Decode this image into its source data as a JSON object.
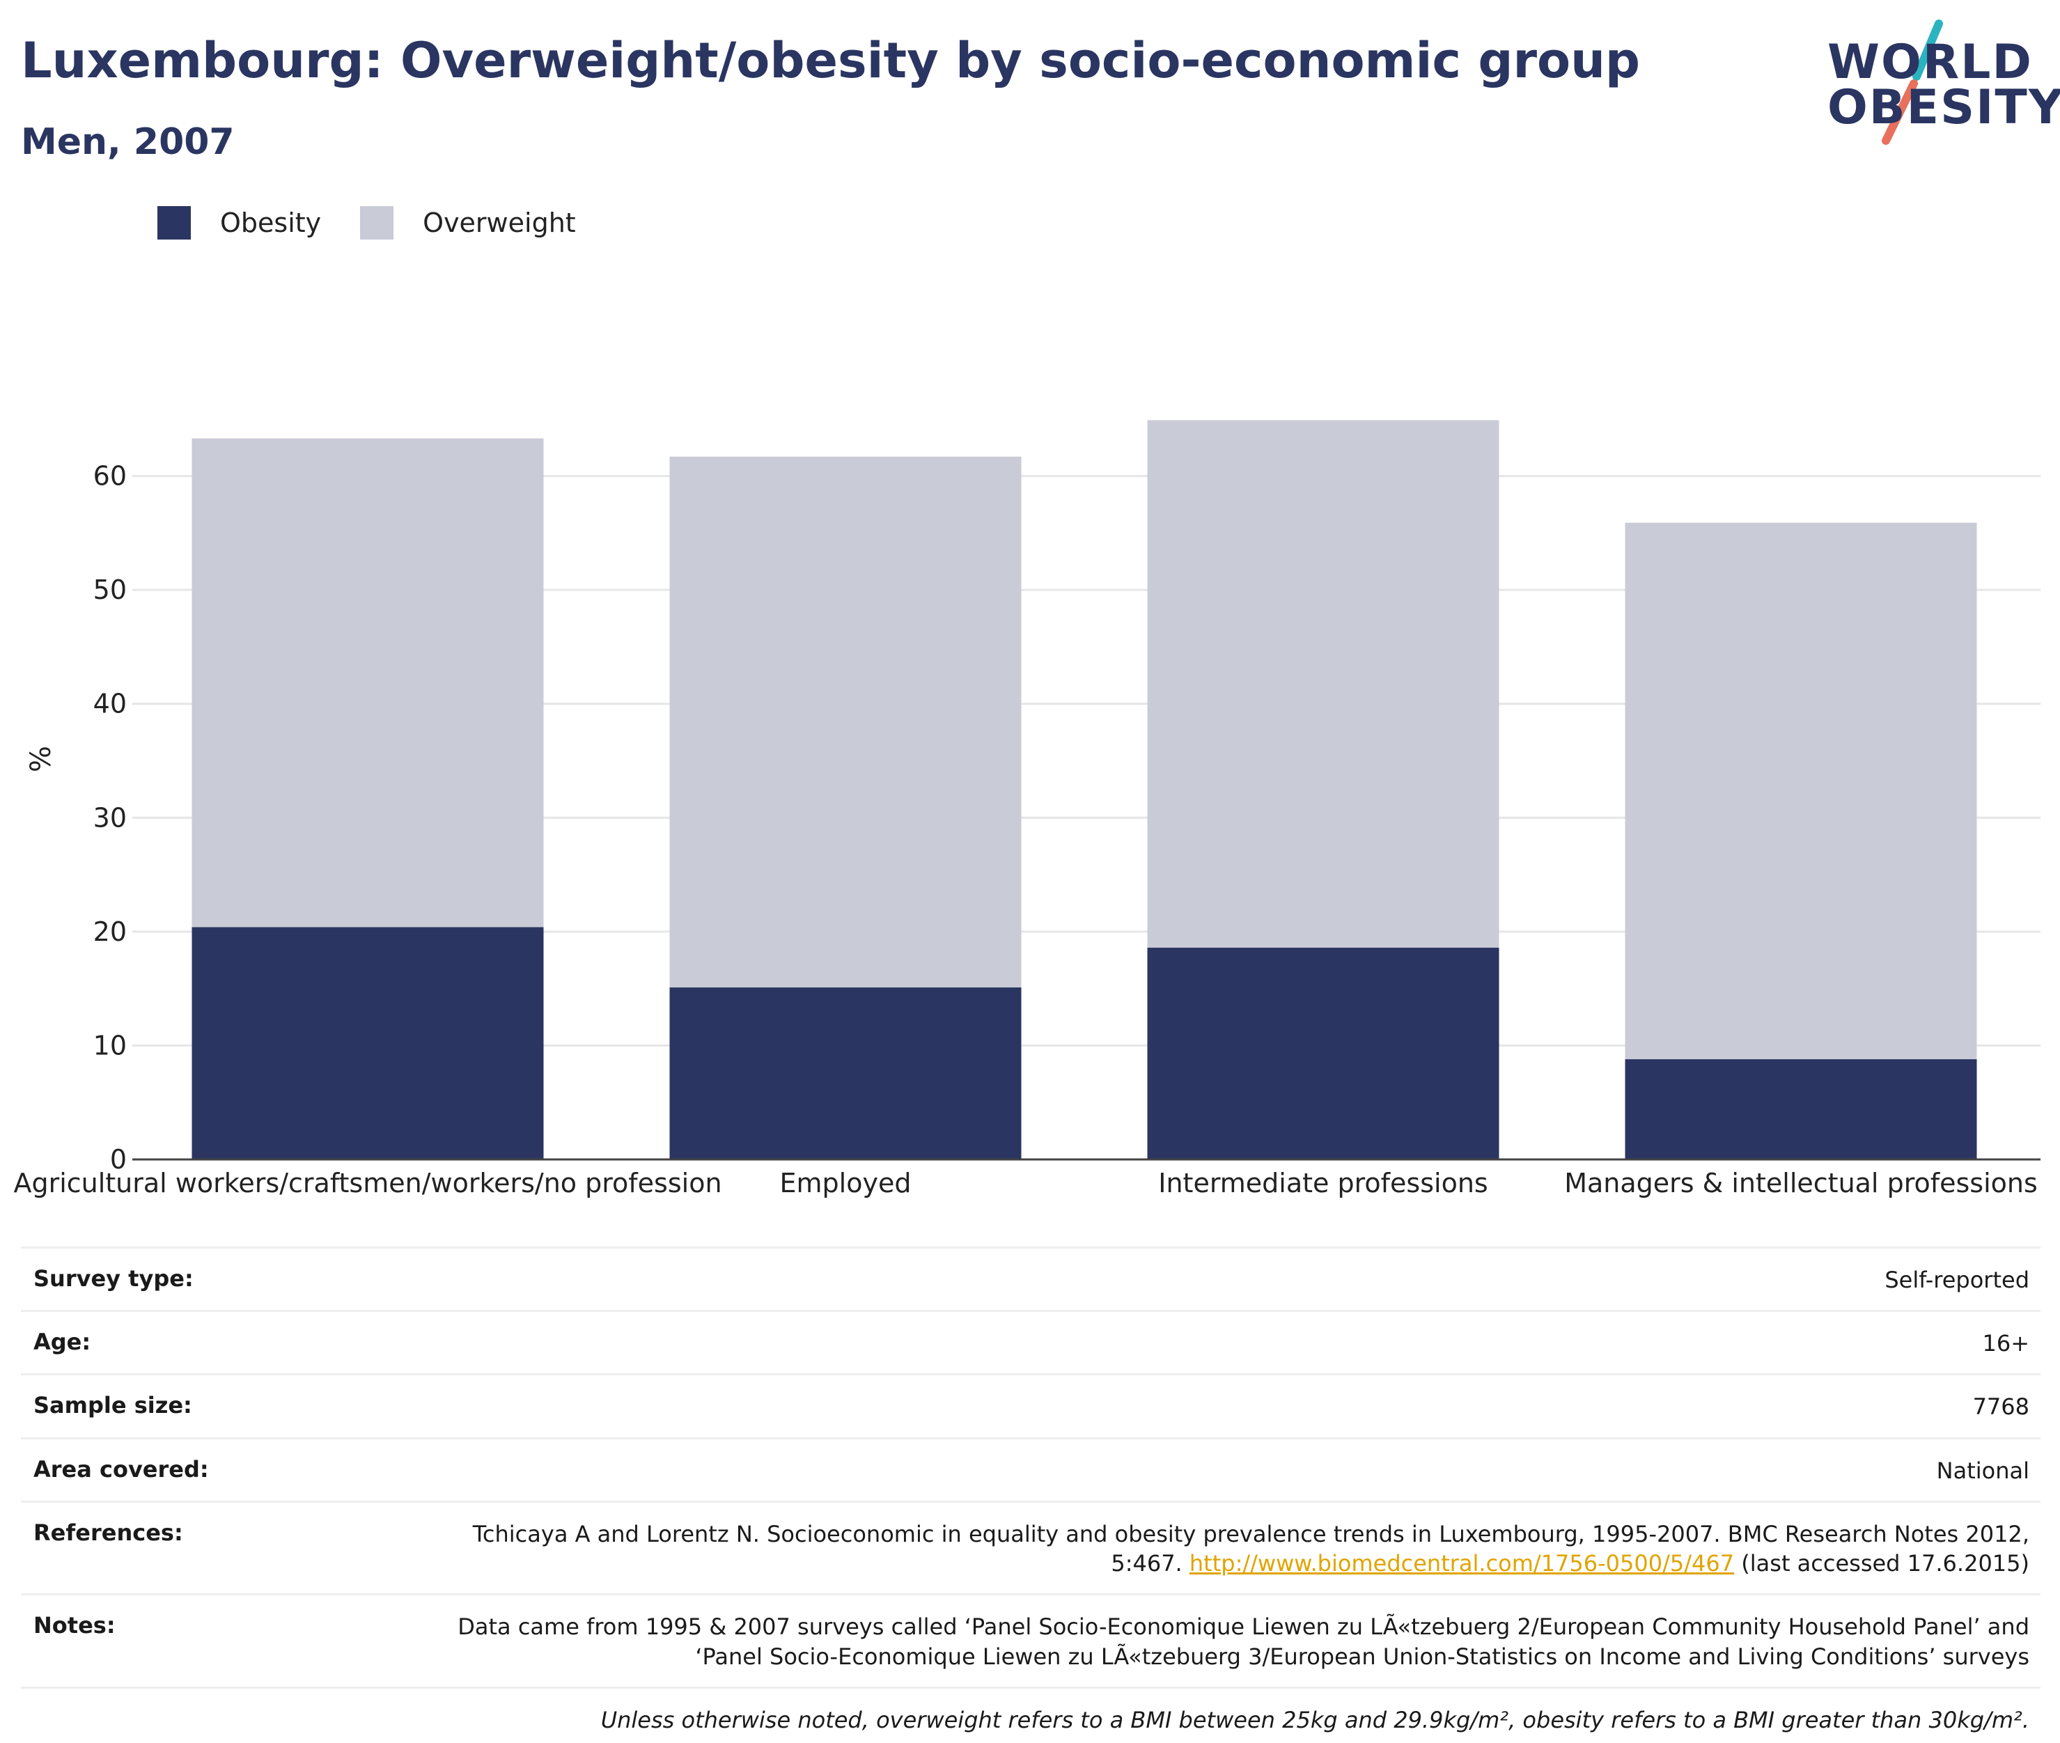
{
  "header": {
    "title": "Luxembourg: Overweight/obesity by socio-economic group",
    "subtitle": "Men, 2007"
  },
  "logo": {
    "line1": "WORLD",
    "line2": "OBESITY",
    "slash_colors": [
      "#2bb3c0",
      "#e8705c"
    ]
  },
  "legend": [
    {
      "label": "Obesity",
      "color": "#2a3561"
    },
    {
      "label": "Overweight",
      "color": "#c9cbd7"
    }
  ],
  "chart_data": {
    "type": "bar",
    "stacked": true,
    "title": "",
    "xlabel": "",
    "ylabel": "%",
    "ylim": [
      0,
      70
    ],
    "yticks": [
      0,
      10,
      20,
      30,
      40,
      50,
      60
    ],
    "grid": true,
    "legend_position": "top-left",
    "categories": [
      "Agricultural workers/craftsmen/workers/no profession",
      "Employed",
      "Intermediate professions",
      "Managers & intellectual professions"
    ],
    "series": [
      {
        "name": "Obesity",
        "color": "#2a3561",
        "values": [
          20.4,
          15.1,
          18.6,
          8.8
        ]
      },
      {
        "name": "Overweight",
        "color": "#c9cbd7",
        "values": [
          42.9,
          46.6,
          46.3,
          47.1
        ]
      }
    ]
  },
  "meta": {
    "rows": [
      {
        "key": "Survey type:",
        "value": "Self-reported"
      },
      {
        "key": "Age:",
        "value": "16+"
      },
      {
        "key": "Sample size:",
        "value": "7768"
      },
      {
        "key": "Area covered:",
        "value": "National"
      }
    ],
    "references_key": "References:",
    "references_text1": "Tchicaya A and Lorentz N. Socioeconomic in equality and obesity prevalence trends in Luxembourg, 1995-2007. BMC Research Notes 2012, 5:467.",
    "references_link": "http://www.biomedcentral.com/1756-0500/5/467",
    "references_text2": "(last accessed 17.6.2015)",
    "notes_key": "Notes:",
    "notes_text": "Data came from 1995 & 2007 surveys called ‘Panel Socio-Economique Liewen zu LÃ«tzebuerg 2/European Community Household Panel’ and ‘Panel Socio-Economique Liewen zu LÃ«tzebuerg 3/European Union-Statistics on Income and Living Conditions’ surveys",
    "footnote": "Unless otherwise noted, overweight refers to a BMI between 25kg and 29.9kg/m², obesity refers to a BMI greater than 30kg/m²."
  }
}
